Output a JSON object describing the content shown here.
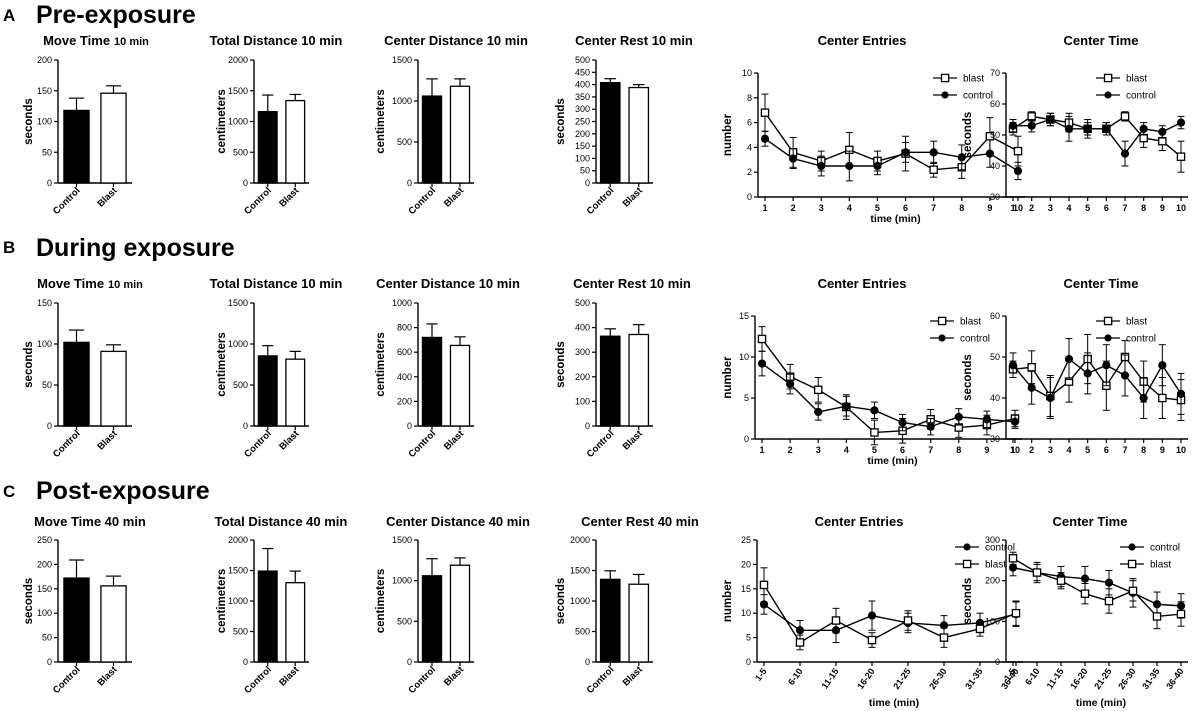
{
  "sections": [
    {
      "letter": "A",
      "title": "Pre-exposure"
    },
    {
      "letter": "B",
      "title": "During exposure"
    },
    {
      "letter": "C",
      "title": "Post-exposure"
    }
  ],
  "chart_data": [
    {
      "type": "bar",
      "row": 0,
      "title": "Move Time",
      "title_unit": "10 min",
      "ylabel": "seconds",
      "ylim": [
        0,
        200
      ],
      "yticks": [
        0,
        50,
        100,
        150,
        200
      ],
      "categories": [
        "Control",
        "Blast"
      ],
      "values": [
        118,
        146
      ],
      "errors": [
        20,
        12
      ],
      "fills": [
        "#000000",
        "#ffffff"
      ]
    },
    {
      "type": "bar",
      "row": 0,
      "title": "Total Distance 10 min",
      "ylabel": "centimeters",
      "ylim": [
        0,
        2000
      ],
      "yticks": [
        0,
        500,
        1000,
        1500,
        2000
      ],
      "categories": [
        "Control",
        "Blast"
      ],
      "values": [
        1160,
        1340
      ],
      "errors": [
        270,
        100
      ],
      "fills": [
        "#000000",
        "#ffffff"
      ]
    },
    {
      "type": "bar",
      "row": 0,
      "title": "Center Distance 10 min",
      "ylabel": "centimeters",
      "ylim": [
        0,
        1500
      ],
      "yticks": [
        0,
        500,
        1000,
        1500
      ],
      "categories": [
        "Control",
        "Blast"
      ],
      "values": [
        1060,
        1180
      ],
      "errors": [
        210,
        90
      ],
      "fills": [
        "#000000",
        "#ffffff"
      ]
    },
    {
      "type": "bar",
      "row": 0,
      "title": "Center Rest 10 min",
      "ylabel": "seconds",
      "ylim": [
        0,
        500
      ],
      "yticks": [
        0,
        50,
        100,
        150,
        200,
        250,
        300,
        350,
        400,
        450,
        500
      ],
      "categories": [
        "Control",
        "Blast"
      ],
      "values": [
        408,
        388
      ],
      "errors": [
        16,
        12
      ],
      "fills": [
        "#000000",
        "#ffffff"
      ]
    },
    {
      "type": "line",
      "row": 0,
      "title": "Center Entries",
      "ylabel": "number",
      "xlabel": "time (min)",
      "ylim": [
        0,
        10
      ],
      "yticks": [
        0,
        2,
        4,
        6,
        8,
        10
      ],
      "x": [
        "1",
        "2",
        "3",
        "4",
        "5",
        "6",
        "7",
        "8",
        "9",
        "10"
      ],
      "series": [
        {
          "name": "blast",
          "marker": "square",
          "values": [
            6.8,
            3.6,
            2.9,
            3.8,
            2.9,
            3.5,
            2.2,
            2.4,
            4.9,
            3.7
          ],
          "errors": [
            1.5,
            1.2,
            0.8,
            1.4,
            0.8,
            1.4,
            0.6,
            0.9,
            1.5,
            1.2
          ]
        },
        {
          "name": "control",
          "marker": "circle",
          "values": [
            4.7,
            3.1,
            2.5,
            2.5,
            2.5,
            3.6,
            3.6,
            3.2,
            3.5,
            2.1
          ],
          "errors": [
            0.6,
            0.8,
            0.8,
            1.2,
            0.7,
            0.8,
            0.9,
            1.0,
            1.1,
            0.7
          ]
        }
      ]
    },
    {
      "type": "line",
      "row": 0,
      "title": "Center Time",
      "ylabel": "seconds",
      "xlabel": "",
      "ylim": [
        30,
        70
      ],
      "yticks": [
        30,
        40,
        50,
        60,
        70
      ],
      "x": [
        "1",
        "2",
        "3",
        "4",
        "5",
        "6",
        "7",
        "8",
        "9",
        "10"
      ],
      "series": [
        {
          "name": "blast",
          "marker": "square",
          "values": [
            52,
            56,
            55,
            54,
            52,
            52,
            56,
            49,
            48,
            43
          ],
          "errors": [
            2,
            1.5,
            2,
            3,
            3,
            2,
            1.5,
            3,
            3,
            5
          ]
        },
        {
          "name": "control",
          "marker": "circle",
          "values": [
            53,
            53,
            55,
            52,
            52,
            52,
            44,
            52,
            51,
            54
          ],
          "errors": [
            2,
            2,
            2,
            4,
            2,
            2,
            4,
            2,
            2,
            2
          ]
        }
      ]
    },
    {
      "type": "bar",
      "row": 1,
      "title": "Move Time",
      "title_unit": "10 min",
      "ylabel": "seconds",
      "ylim": [
        0,
        150
      ],
      "yticks": [
        0,
        50,
        100,
        150
      ],
      "categories": [
        "Control",
        "Blast"
      ],
      "values": [
        102,
        91
      ],
      "errors": [
        15,
        8
      ],
      "fills": [
        "#000000",
        "#ffffff"
      ]
    },
    {
      "type": "bar",
      "row": 1,
      "title": "Total Distance 10 min",
      "ylabel": "centimeters",
      "ylim": [
        0,
        1500
      ],
      "yticks": [
        0,
        500,
        1000,
        1500
      ],
      "categories": [
        "Control",
        "Blast"
      ],
      "values": [
        855,
        815
      ],
      "errors": [
        125,
        95
      ],
      "fills": [
        "#000000",
        "#ffffff"
      ]
    },
    {
      "type": "bar",
      "row": 1,
      "title": "Center Distance 10 min",
      "ylabel": "centimeters",
      "ylim": [
        0,
        1000
      ],
      "yticks": [
        0,
        200,
        400,
        600,
        800,
        1000
      ],
      "categories": [
        "Control",
        "Blast"
      ],
      "values": [
        720,
        655
      ],
      "errors": [
        110,
        70
      ],
      "fills": [
        "#000000",
        "#ffffff"
      ]
    },
    {
      "type": "bar",
      "row": 1,
      "title": "Center Rest 10 min",
      "ylabel": "seconds",
      "ylim": [
        0,
        500
      ],
      "yticks": [
        0,
        100,
        200,
        300,
        400,
        500
      ],
      "categories": [
        "Control",
        "Blast"
      ],
      "values": [
        365,
        372
      ],
      "errors": [
        30,
        40
      ],
      "fills": [
        "#000000",
        "#ffffff"
      ]
    },
    {
      "type": "line",
      "row": 1,
      "title": "Center Entries",
      "ylabel": "number",
      "xlabel": "time (min)",
      "ylim": [
        0,
        15
      ],
      "yticks": [
        0,
        5,
        10,
        15
      ],
      "x": [
        "1",
        "2",
        "3",
        "4",
        "5",
        "6",
        "7",
        "8",
        "9",
        "10"
      ],
      "series": [
        {
          "name": "blast",
          "marker": "square",
          "values": [
            12.2,
            7.6,
            6.0,
            3.9,
            0.8,
            1.0,
            2.4,
            1.4,
            1.7,
            2.5
          ],
          "errors": [
            1.5,
            1.5,
            1.5,
            1.5,
            1.5,
            1.5,
            1.2,
            1.2,
            1.2,
            1.0
          ]
        },
        {
          "name": "control",
          "marker": "circle",
          "values": [
            9.2,
            6.7,
            3.3,
            4.0,
            3.5,
            2.0,
            1.5,
            2.7,
            2.4,
            2.1
          ],
          "errors": [
            1.5,
            1.2,
            1.0,
            1.2,
            1.0,
            1.0,
            1.0,
            1.0,
            1.0,
            0.8
          ]
        }
      ]
    },
    {
      "type": "line",
      "row": 1,
      "title": "Center Time",
      "ylabel": "seconds",
      "xlabel": "",
      "ylim": [
        30,
        60
      ],
      "yticks": [
        30,
        40,
        50,
        60
      ],
      "x": [
        "1",
        "2",
        "3",
        "4",
        "5",
        "6",
        "7",
        "8",
        "9",
        "10"
      ],
      "series": [
        {
          "name": "blast",
          "marker": "square",
          "values": [
            47,
            47.5,
            40.5,
            44,
            49.5,
            43,
            50,
            44,
            40,
            39.5
          ],
          "errors": [
            2,
            4,
            5,
            5,
            6,
            6,
            4,
            5,
            5,
            5
          ]
        },
        {
          "name": "control",
          "marker": "circle",
          "values": [
            48,
            42.5,
            40,
            49.5,
            46,
            48,
            45.5,
            40,
            48,
            41
          ],
          "errors": [
            3,
            4,
            5,
            5,
            5,
            5,
            5,
            5,
            5,
            5
          ]
        }
      ]
    },
    {
      "type": "bar",
      "row": 2,
      "title": "Move Time 40 min",
      "ylabel": "seconds",
      "ylim": [
        0,
        250
      ],
      "yticks": [
        0,
        50,
        100,
        150,
        200,
        250
      ],
      "categories": [
        "Control",
        "Blast"
      ],
      "values": [
        172,
        156
      ],
      "errors": [
        37,
        20
      ],
      "fills": [
        "#000000",
        "#ffffff"
      ]
    },
    {
      "type": "bar",
      "row": 2,
      "title": "Total Distance 40 min",
      "ylabel": "centimeters",
      "ylim": [
        0,
        2000
      ],
      "yticks": [
        0,
        500,
        1000,
        1500,
        2000
      ],
      "categories": [
        "Control",
        "Blast"
      ],
      "values": [
        1490,
        1300
      ],
      "errors": [
        370,
        190
      ],
      "fills": [
        "#000000",
        "#ffffff"
      ]
    },
    {
      "type": "bar",
      "row": 2,
      "title": "Center Distance 40 min",
      "ylabel": "centimeters",
      "ylim": [
        0,
        1500
      ],
      "yticks": [
        0,
        500,
        1000,
        1500
      ],
      "categories": [
        "Control",
        "Blast"
      ],
      "values": [
        1060,
        1190
      ],
      "errors": [
        210,
        90
      ],
      "fills": [
        "#000000",
        "#ffffff"
      ]
    },
    {
      "type": "bar",
      "row": 2,
      "title": "Center Rest 40 min",
      "ylabel": "seconds",
      "ylim": [
        0,
        2000
      ],
      "yticks": [
        0,
        500,
        1000,
        1500,
        2000
      ],
      "categories": [
        "Control",
        "Blast"
      ],
      "values": [
        1355,
        1275
      ],
      "errors": [
        140,
        160
      ],
      "fills": [
        "#000000",
        "#ffffff"
      ]
    },
    {
      "type": "line",
      "row": 2,
      "title": "Center Entries",
      "ylabel": "number",
      "xlabel": "time (min)",
      "ylim": [
        0,
        25
      ],
      "yticks": [
        0,
        5,
        10,
        15,
        20,
        25
      ],
      "x": [
        "1-5",
        "6-10",
        "11-15",
        "16-20",
        "21-25",
        "26-30",
        "31-35",
        "36-40"
      ],
      "series": [
        {
          "name": "control",
          "marker": "circle",
          "values": [
            11.8,
            6.5,
            6.5,
            9.5,
            8.0,
            7.5,
            8.0,
            9.8
          ],
          "errors": [
            2,
            2,
            2.5,
            3,
            2,
            2,
            2,
            2.5
          ]
        },
        {
          "name": "blast",
          "marker": "square",
          "values": [
            15.8,
            4.0,
            8.5,
            4.5,
            8.5,
            5.0,
            6.8,
            10.0
          ],
          "errors": [
            3.5,
            1.5,
            2.5,
            1.5,
            2,
            2,
            1.5,
            2.5
          ]
        }
      ]
    },
    {
      "type": "line",
      "row": 2,
      "title": "Center Time",
      "ylabel": "seconds",
      "xlabel": "time (min)",
      "ylim": [
        0,
        300
      ],
      "yticks": [
        0,
        100,
        200,
        300
      ],
      "x": [
        "1-5",
        "6-10",
        "11-15",
        "16-20",
        "21-25",
        "26-30",
        "31-35",
        "36-40"
      ],
      "series": [
        {
          "name": "control",
          "marker": "circle",
          "values": [
            232,
            220,
            210,
            205,
            195,
            170,
            142,
            138
          ],
          "errors": [
            20,
            25,
            25,
            30,
            30,
            35,
            30,
            30
          ]
        },
        {
          "name": "blast",
          "marker": "square",
          "values": [
            255,
            220,
            200,
            168,
            150,
            175,
            112,
            118
          ],
          "errors": [
            15,
            20,
            20,
            25,
            30,
            25,
            30,
            30
          ]
        }
      ]
    }
  ]
}
